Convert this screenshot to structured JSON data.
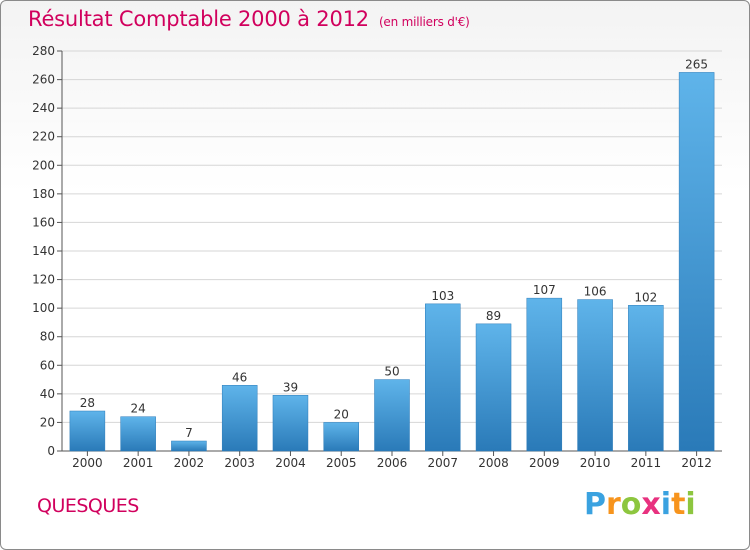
{
  "title": "Résultat Comptable 2000 à 2012",
  "unit": "(en milliers d'€)",
  "commune": "QUESQUES",
  "logo": {
    "letters": [
      "P",
      "r",
      "o",
      "x",
      "i",
      "t",
      "i"
    ],
    "colors": [
      "#3aa2e0",
      "#f7941d",
      "#8dc63f",
      "#e8317f",
      "#3aa2e0",
      "#f7941d",
      "#8dc63f"
    ]
  },
  "colors": {
    "bar_top": "#5fb4ea",
    "bar_bottom": "#2a7ab8",
    "accent": "#d1005d",
    "grid": "#d6d6d6"
  },
  "chart_data": {
    "type": "bar",
    "title": "Résultat Comptable 2000 à 2012",
    "xlabel": "",
    "ylabel": "",
    "categories": [
      "2000",
      "2001",
      "2002",
      "2003",
      "2004",
      "2005",
      "2006",
      "2007",
      "2008",
      "2009",
      "2010",
      "2011",
      "2012"
    ],
    "values": [
      28,
      24,
      7,
      46,
      39,
      20,
      50,
      103,
      89,
      107,
      106,
      102,
      265
    ],
    "ylim": [
      0,
      280
    ],
    "yticks": [
      0,
      20,
      40,
      60,
      80,
      100,
      120,
      140,
      160,
      180,
      200,
      220,
      240,
      260,
      280
    ],
    "grid": true
  }
}
